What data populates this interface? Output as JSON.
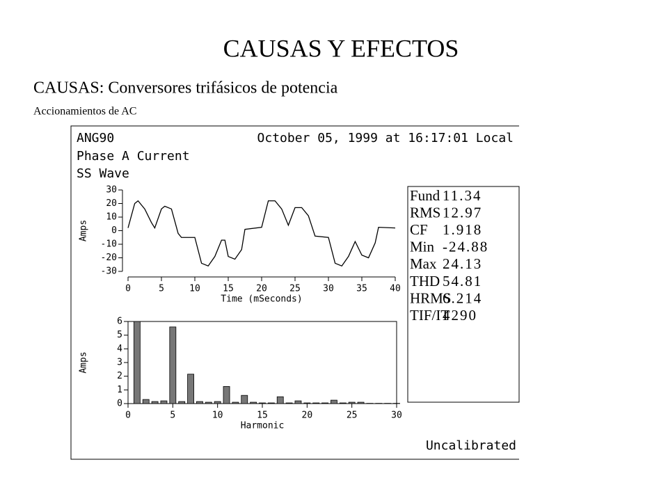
{
  "slide": {
    "title": "CAUSAS Y EFECTOS",
    "subtitle": "CAUSAS: Conversores trifásicos de potencia",
    "caption": "Accionamientos de AC"
  },
  "panel": {
    "site": "ANG90",
    "timestamp": "October 05, 1999 at 16:17:01 Local",
    "channel": "Phase A Current",
    "mode": "SS Wave",
    "status": "Uncalibrated",
    "stats": [
      {
        "label": "Fund",
        "value": "11.34"
      },
      {
        "label": "RMS",
        "value": "12.97"
      },
      {
        "label": "CF",
        "value": "1.918"
      },
      {
        "label": "Min",
        "value": "-24.88"
      },
      {
        "label": "Max",
        "value": "24.13"
      },
      {
        "label": "THD",
        "value": "54.81"
      },
      {
        "label": "HRMS",
        "value": "6.214"
      },
      {
        "label": "TIF/IT",
        "value": "4290"
      }
    ]
  },
  "chart_data": [
    {
      "type": "line",
      "xlabel": "Time (mSeconds)",
      "ylabel": "Amps",
      "color": "#000000",
      "x": [
        0,
        1,
        1.5,
        2.5,
        3.5,
        4,
        5,
        5.5,
        6.5,
        7.5,
        8,
        10,
        11,
        12,
        13,
        14,
        14.5,
        15,
        16,
        17,
        17.5,
        20,
        21,
        22,
        23,
        24,
        25,
        26,
        27,
        28,
        30,
        31,
        32,
        33,
        34,
        35,
        36,
        37,
        37.5,
        40
      ],
      "values": [
        2,
        20,
        22,
        16,
        6,
        2,
        16,
        18,
        16,
        -2,
        -5,
        -5,
        -24,
        -26,
        -19,
        -7,
        -7,
        -19,
        -21,
        -14,
        1,
        2.5,
        22,
        22,
        16,
        4,
        17,
        17,
        11,
        -4,
        -5,
        -24,
        -26,
        -19,
        -8,
        -18,
        -20,
        -9,
        2.5,
        2
      ],
      "xlim": [
        0,
        40
      ],
      "xticks": [
        0,
        5,
        10,
        15,
        20,
        25,
        30,
        35,
        40
      ],
      "ylim": [
        -30,
        30
      ],
      "yticks": [
        -30,
        -20,
        -10,
        0,
        10,
        20,
        30
      ]
    },
    {
      "type": "bar",
      "xlabel": "Harmonic",
      "ylabel": "Amps",
      "color": "#777777",
      "x": [
        1,
        2,
        3,
        4,
        5,
        6,
        7,
        8,
        9,
        10,
        11,
        12,
        13,
        14,
        15,
        16,
        17,
        18,
        19,
        20,
        21,
        22,
        23,
        24,
        25,
        26,
        27,
        28,
        29,
        30
      ],
      "values": [
        6,
        0.3,
        0.15,
        0.2,
        5.6,
        0.15,
        2.15,
        0.15,
        0.1,
        0.15,
        1.25,
        0.1,
        0.6,
        0.1,
        0.05,
        0.05,
        0.5,
        0.05,
        0.2,
        0.05,
        0.05,
        0.05,
        0.25,
        0.05,
        0.1,
        0.1,
        0.02,
        0.02,
        0.02,
        0.02
      ],
      "xlim": [
        0,
        30
      ],
      "xticks": [
        0,
        5,
        10,
        15,
        20,
        25,
        30
      ],
      "ylim": [
        0,
        6
      ],
      "yticks": [
        0,
        1,
        2,
        3,
        4,
        5,
        6
      ]
    }
  ]
}
